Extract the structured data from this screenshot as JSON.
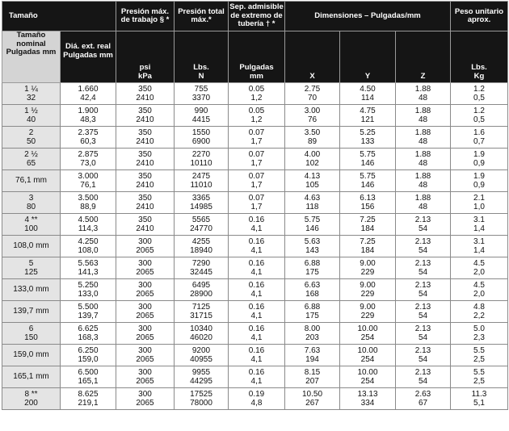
{
  "headers": {
    "tamano": "Tamaño",
    "presion_max": "Presión máx. de trabajo § *",
    "presion_total": "Presión total máx.*",
    "sep_adm": "Sep. admisible de extremo de tubería † *",
    "dimensiones": "Dimensiones – Pulgadas/mm",
    "peso": "Peso unitario aprox.",
    "tamano_nominal": "Tamaño nominal Pulgadas mm",
    "dia_ext": "Diá. ext. real Pulgadas mm",
    "psi": "psi",
    "kpa": "kPa",
    "lbs": "Lbs.",
    "n": "N",
    "pulgadas": "Pulgadas",
    "mm": "mm",
    "x": "X",
    "y": "Y",
    "z": "Z",
    "lbs_peso": "Lbs.",
    "kg": "Kg"
  },
  "rows": [
    {
      "size": [
        "1 ¼",
        "32"
      ],
      "od": [
        "1.660",
        "42,4"
      ],
      "psi": [
        "350",
        "2410"
      ],
      "lbs": [
        "755",
        "3370"
      ],
      "sep": [
        "0.05",
        "1,2"
      ],
      "x": [
        "2.75",
        "70"
      ],
      "y": [
        "4.50",
        "114"
      ],
      "z": [
        "1.88",
        "48"
      ],
      "w": [
        "1.2",
        "0,5"
      ]
    },
    {
      "size": [
        "1 ½",
        "40"
      ],
      "od": [
        "1.900",
        "48,3"
      ],
      "psi": [
        "350",
        "2410"
      ],
      "lbs": [
        "990",
        "4415"
      ],
      "sep": [
        "0.05",
        "1,2"
      ],
      "x": [
        "3.00",
        "76"
      ],
      "y": [
        "4.75",
        "121"
      ],
      "z": [
        "1.88",
        "48"
      ],
      "w": [
        "1.2",
        "0,5"
      ]
    },
    {
      "size": [
        "2",
        "50"
      ],
      "od": [
        "2.375",
        "60,3"
      ],
      "psi": [
        "350",
        "2410"
      ],
      "lbs": [
        "1550",
        "6900"
      ],
      "sep": [
        "0.07",
        "1,7"
      ],
      "x": [
        "3.50",
        "89"
      ],
      "y": [
        "5.25",
        "133"
      ],
      "z": [
        "1.88",
        "48"
      ],
      "w": [
        "1.6",
        "0,7"
      ]
    },
    {
      "size": [
        "2 ½",
        "65"
      ],
      "od": [
        "2.875",
        "73,0"
      ],
      "psi": [
        "350",
        "2410"
      ],
      "lbs": [
        "2270",
        "10110"
      ],
      "sep": [
        "0.07",
        "1,7"
      ],
      "x": [
        "4.00",
        "102"
      ],
      "y": [
        "5.75",
        "146"
      ],
      "z": [
        "1.88",
        "48"
      ],
      "w": [
        "1.9",
        "0,9"
      ]
    },
    {
      "size": [
        "76,1 mm"
      ],
      "od": [
        "3.000",
        "76,1"
      ],
      "psi": [
        "350",
        "2410"
      ],
      "lbs": [
        "2475",
        "11010"
      ],
      "sep": [
        "0.07",
        "1,7"
      ],
      "x": [
        "4.13",
        "105"
      ],
      "y": [
        "5.75",
        "146"
      ],
      "z": [
        "1.88",
        "48"
      ],
      "w": [
        "1.9",
        "0,9"
      ]
    },
    {
      "size": [
        "3",
        "80"
      ],
      "od": [
        "3.500",
        "88,9"
      ],
      "psi": [
        "350",
        "2410"
      ],
      "lbs": [
        "3365",
        "14985"
      ],
      "sep": [
        "0.07",
        "1,7"
      ],
      "x": [
        "4.63",
        "118"
      ],
      "y": [
        "6.13",
        "156"
      ],
      "z": [
        "1.88",
        "48"
      ],
      "w": [
        "2.1",
        "1,0"
      ]
    },
    {
      "size": [
        "4 **",
        "100"
      ],
      "od": [
        "4.500",
        "114,3"
      ],
      "psi": [
        "350",
        "2410"
      ],
      "lbs": [
        "5565",
        "24770"
      ],
      "sep": [
        "0.16",
        "4,1"
      ],
      "x": [
        "5.75",
        "146"
      ],
      "y": [
        "7.25",
        "184"
      ],
      "z": [
        "2.13",
        "54"
      ],
      "w": [
        "3.1",
        "1,4"
      ]
    },
    {
      "size": [
        "108,0 mm"
      ],
      "od": [
        "4.250",
        "108,0"
      ],
      "psi": [
        "300",
        "2065"
      ],
      "lbs": [
        "4255",
        "18940"
      ],
      "sep": [
        "0.16",
        "4,1"
      ],
      "x": [
        "5.63",
        "143"
      ],
      "y": [
        "7.25",
        "184"
      ],
      "z": [
        "2.13",
        "54"
      ],
      "w": [
        "3.1",
        "1,4"
      ]
    },
    {
      "size": [
        "5",
        "125"
      ],
      "od": [
        "5.563",
        "141,3"
      ],
      "psi": [
        "300",
        "2065"
      ],
      "lbs": [
        "7290",
        "32445"
      ],
      "sep": [
        "0.16",
        "4,1"
      ],
      "x": [
        "6.88",
        "175"
      ],
      "y": [
        "9.00",
        "229"
      ],
      "z": [
        "2.13",
        "54"
      ],
      "w": [
        "4.5",
        "2,0"
      ]
    },
    {
      "size": [
        "133,0 mm"
      ],
      "od": [
        "5.250",
        "133,0"
      ],
      "psi": [
        "300",
        "2065"
      ],
      "lbs": [
        "6495",
        "28900"
      ],
      "sep": [
        "0.16",
        "4,1"
      ],
      "x": [
        "6.63",
        "168"
      ],
      "y": [
        "9.00",
        "229"
      ],
      "z": [
        "2.13",
        "54"
      ],
      "w": [
        "4.5",
        "2,0"
      ]
    },
    {
      "size": [
        "139,7 mm"
      ],
      "od": [
        "5.500",
        "139,7"
      ],
      "psi": [
        "300",
        "2065"
      ],
      "lbs": [
        "7125",
        "31715"
      ],
      "sep": [
        "0.16",
        "4,1"
      ],
      "x": [
        "6.88",
        "175"
      ],
      "y": [
        "9.00",
        "229"
      ],
      "z": [
        "2.13",
        "54"
      ],
      "w": [
        "4.8",
        "2,2"
      ]
    },
    {
      "size": [
        "6",
        "150"
      ],
      "od": [
        "6.625",
        "168,3"
      ],
      "psi": [
        "300",
        "2065"
      ],
      "lbs": [
        "10340",
        "46020"
      ],
      "sep": [
        "0.16",
        "4,1"
      ],
      "x": [
        "8.00",
        "203"
      ],
      "y": [
        "10.00",
        "254"
      ],
      "z": [
        "2.13",
        "54"
      ],
      "w": [
        "5.0",
        "2,3"
      ]
    },
    {
      "size": [
        "159,0 mm"
      ],
      "od": [
        "6.250",
        "159,0"
      ],
      "psi": [
        "300",
        "2065"
      ],
      "lbs": [
        "9200",
        "40955"
      ],
      "sep": [
        "0.16",
        "4,1"
      ],
      "x": [
        "7.63",
        "194"
      ],
      "y": [
        "10.00",
        "254"
      ],
      "z": [
        "2.13",
        "54"
      ],
      "w": [
        "5.5",
        "2,5"
      ]
    },
    {
      "size": [
        "165,1 mm"
      ],
      "od": [
        "6.500",
        "165,1"
      ],
      "psi": [
        "300",
        "2065"
      ],
      "lbs": [
        "9955",
        "44295"
      ],
      "sep": [
        "0.16",
        "4,1"
      ],
      "x": [
        "8.15",
        "207"
      ],
      "y": [
        "10.00",
        "254"
      ],
      "z": [
        "2.13",
        "54"
      ],
      "w": [
        "5.5",
        "2,5"
      ]
    },
    {
      "size": [
        "8 **",
        "200"
      ],
      "od": [
        "8.625",
        "219,1"
      ],
      "psi": [
        "300",
        "2065"
      ],
      "lbs": [
        "17525",
        "78000"
      ],
      "sep": [
        "0.19",
        "4,8"
      ],
      "x": [
        "10.50",
        "267"
      ],
      "y": [
        "13.13",
        "334"
      ],
      "z": [
        "2.63",
        "67"
      ],
      "w": [
        "11.3",
        "5,1"
      ]
    }
  ]
}
